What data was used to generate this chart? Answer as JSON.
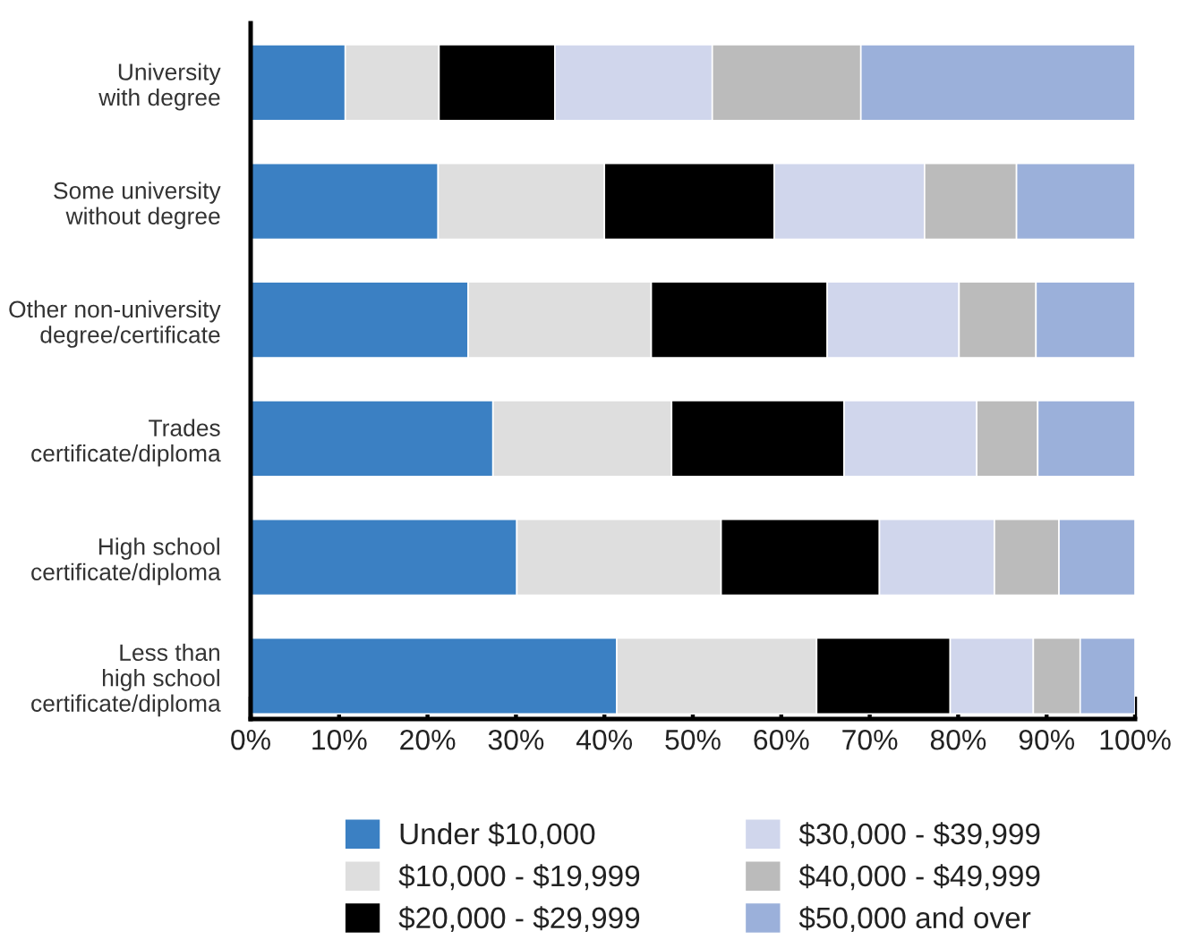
{
  "chart_data": {
    "type": "bar",
    "orientation": "horizontal",
    "stacked": true,
    "categories": [
      "University\nwith degree",
      "Some university\nwithout degree",
      "Other non-university\ndegree/certificate",
      "Trades\ncertificate/diploma",
      "High school\ncertificate/diploma",
      "Less than\nhigh school\ncertificate/diploma"
    ],
    "series": [
      {
        "name": "Under $10,000",
        "color": "#3b80c3",
        "values": [
          10.7,
          21.2,
          24.6,
          27.4,
          30.1,
          41.4
        ]
      },
      {
        "name": "$10,000 - $19,999",
        "color": "#dedede",
        "values": [
          10.6,
          18.8,
          20.7,
          20.2,
          23.1,
          22.6
        ]
      },
      {
        "name": "$20,000 - $29,999",
        "color": "#000000",
        "values": [
          13.1,
          19.2,
          19.9,
          19.5,
          17.9,
          15.1
        ]
      },
      {
        "name": "$30,000 - $39,999",
        "color": "#d0d6ec",
        "values": [
          17.8,
          17.0,
          14.9,
          15.0,
          13.0,
          9.4
        ]
      },
      {
        "name": "$40,000 - $49,999",
        "color": "#bbbbbb",
        "values": [
          16.8,
          10.4,
          8.7,
          6.9,
          7.3,
          5.3
        ]
      },
      {
        "name": "$50,000 and over",
        "color": "#9bb0da",
        "values": [
          31.0,
          13.4,
          11.2,
          11.0,
          8.6,
          6.2
        ]
      }
    ],
    "xlim": [
      0,
      100
    ],
    "xticks": [
      {
        "value": 0,
        "label": "0%"
      },
      {
        "value": 10,
        "label": "10%"
      },
      {
        "value": 20,
        "label": "20%"
      },
      {
        "value": 30,
        "label": "30%"
      },
      {
        "value": 40,
        "label": "40%"
      },
      {
        "value": 50,
        "label": "50%"
      },
      {
        "value": 60,
        "label": "60%"
      },
      {
        "value": 70,
        "label": "70%"
      },
      {
        "value": 80,
        "label": "80%"
      },
      {
        "value": 90,
        "label": "90%"
      },
      {
        "value": 100,
        "label": "100%"
      }
    ],
    "legend": "bottom"
  }
}
